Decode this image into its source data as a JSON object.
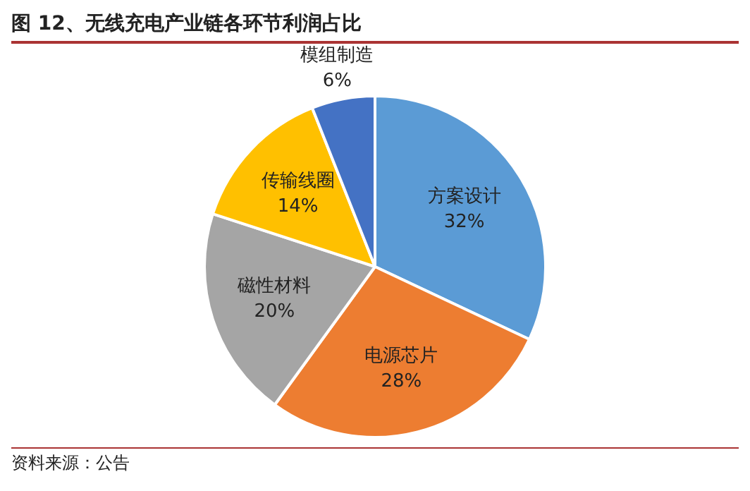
{
  "chart_data": {
    "type": "pie",
    "title": "图 12、无线充电产业链各环节利润占比",
    "categories": [
      "方案设计",
      "电源芯片",
      "磁性材料",
      "传输线圈",
      "模组制造"
    ],
    "values": [
      32,
      28,
      20,
      14,
      6
    ],
    "value_labels": [
      "32%",
      "28%",
      "20%",
      "14%",
      "6%"
    ],
    "colors": [
      "#5b9bd5",
      "#ed7d31",
      "#a5a5a5",
      "#ffc000",
      "#4472c4"
    ],
    "legend": false,
    "annotations": [
      "资料来源：公告"
    ]
  }
}
